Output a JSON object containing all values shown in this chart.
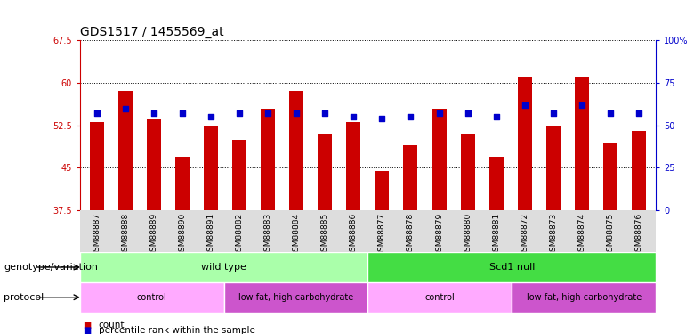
{
  "title": "GDS1517 / 1455569_at",
  "samples": [
    "GSM88887",
    "GSM88888",
    "GSM88889",
    "GSM88890",
    "GSM88891",
    "GSM88882",
    "GSM88883",
    "GSM88884",
    "GSM88885",
    "GSM88886",
    "GSM88877",
    "GSM88878",
    "GSM88879",
    "GSM88880",
    "GSM88881",
    "GSM88872",
    "GSM88873",
    "GSM88874",
    "GSM88875",
    "GSM88876"
  ],
  "counts": [
    53.0,
    58.5,
    53.5,
    47.0,
    52.5,
    50.0,
    55.5,
    58.5,
    51.0,
    53.0,
    44.5,
    49.0,
    55.5,
    51.0,
    47.0,
    61.0,
    52.5,
    61.0,
    49.5,
    51.5
  ],
  "percentiles": [
    57,
    60,
    57,
    57,
    55,
    57,
    57,
    57,
    57,
    55,
    54,
    55,
    57,
    57,
    55,
    62,
    57,
    62,
    57,
    57
  ],
  "ylim_left": [
    37.5,
    67.5
  ],
  "ylim_right": [
    0,
    100
  ],
  "yticks_left": [
    37.5,
    45.0,
    52.5,
    60.0,
    67.5
  ],
  "yticks_right": [
    0,
    25,
    50,
    75,
    100
  ],
  "ytick_labels_left": [
    "37.5",
    "45",
    "52.5",
    "60",
    "67.5"
  ],
  "ytick_labels_right": [
    "0",
    "25",
    "50",
    "75",
    "100%"
  ],
  "bar_color": "#CC0000",
  "dot_color": "#0000CC",
  "grid_color": "#000000",
  "groups": [
    {
      "label": "wild type",
      "start": 0,
      "end": 10,
      "color": "#AAFFAA"
    },
    {
      "label": "Scd1 null",
      "start": 10,
      "end": 20,
      "color": "#44DD44"
    }
  ],
  "protocols": [
    {
      "label": "control",
      "start": 0,
      "end": 5,
      "color": "#FFAAFF"
    },
    {
      "label": "low fat, high carbohydrate",
      "start": 5,
      "end": 10,
      "color": "#CC55CC"
    },
    {
      "label": "control",
      "start": 10,
      "end": 15,
      "color": "#FFAAFF"
    },
    {
      "label": "low fat, high carbohydrate",
      "start": 15,
      "end": 20,
      "color": "#CC55CC"
    }
  ],
  "legend_items": [
    {
      "label": "count",
      "color": "#CC0000"
    },
    {
      "label": "percentile rank within the sample",
      "color": "#0000CC"
    }
  ],
  "genotype_label": "genotype/variation",
  "protocol_label": "protocol",
  "title_fontsize": 10,
  "tick_fontsize": 7,
  "label_fontsize": 8,
  "bar_label_fontsize": 6.5
}
